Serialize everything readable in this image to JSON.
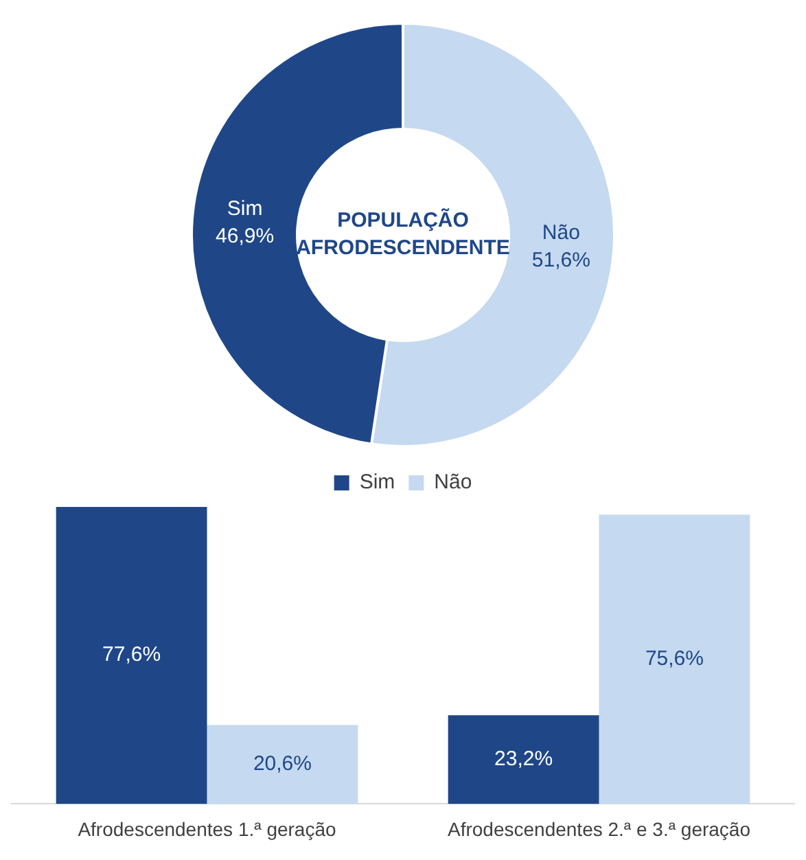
{
  "chart_data": [
    {
      "type": "donut",
      "title": "POPULAÇÃO AFRODESCENDENTE",
      "categories": [
        "Não",
        "Sim"
      ],
      "values": [
        51.6,
        46.9
      ],
      "colors": [
        "#c5d9f0",
        "#1f4788"
      ],
      "value_labels": [
        "51,6%",
        "46,9%"
      ]
    },
    {
      "type": "bar",
      "categories": [
        "Afrodescendentes 1.ª geração",
        "Afrodescendentes 2.ª e 3.ª geração"
      ],
      "series": [
        {
          "name": "Sim",
          "color": "#1f4788",
          "values": [
            77.6,
            23.2
          ],
          "value_labels": [
            "77,6%",
            "23,2%"
          ]
        },
        {
          "name": "Não",
          "color": "#c5d9f0",
          "values": [
            20.6,
            75.6
          ],
          "value_labels": [
            "20,6%",
            "75,6%"
          ]
        }
      ],
      "legend": "top"
    }
  ]
}
